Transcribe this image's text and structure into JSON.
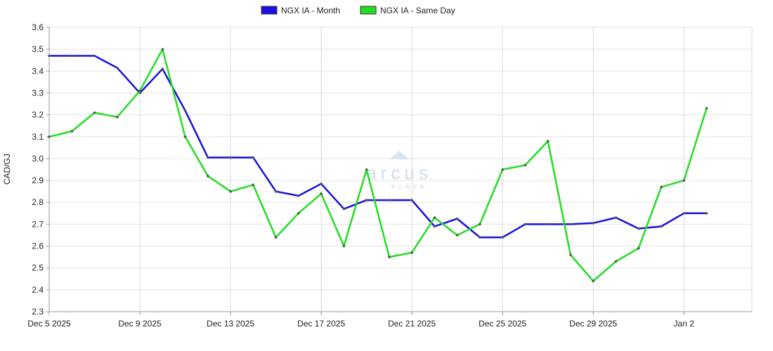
{
  "chart_data": {
    "type": "line",
    "ylabel": "CAD/GJ",
    "ylim": [
      2.3,
      3.6
    ],
    "yticks": [
      "2.3",
      "2.4",
      "2.5",
      "2.6",
      "2.7",
      "2.8",
      "2.9",
      "3.0",
      "3.1",
      "3.2",
      "3.3",
      "3.4",
      "3.5",
      "3.6"
    ],
    "x_tick_labels": [
      "Dec 5 2025",
      "Dec 9 2025",
      "Dec 13 2025",
      "Dec 17 2025",
      "Dec 21 2025",
      "Dec 25 2025",
      "Dec 29 2025",
      "Jan 2"
    ],
    "x_dates": [
      "2025-12-05",
      "2025-12-06",
      "2025-12-07",
      "2025-12-08",
      "2025-12-09",
      "2025-12-10",
      "2025-12-11",
      "2025-12-12",
      "2025-12-13",
      "2025-12-14",
      "2025-12-15",
      "2025-12-16",
      "2025-12-17",
      "2025-12-18",
      "2025-12-19",
      "2025-12-20",
      "2025-12-21",
      "2025-12-22",
      "2025-12-23",
      "2025-12-24",
      "2025-12-25",
      "2025-12-26",
      "2025-12-27",
      "2025-12-28",
      "2025-12-29",
      "2025-12-30",
      "2025-12-31",
      "2026-01-01",
      "2026-01-02",
      "2026-01-03"
    ],
    "grid": true,
    "legend_position": "top",
    "series": [
      {
        "name": "NGX IA - Month",
        "color": "#1a0fe0",
        "values": [
          3.47,
          3.47,
          3.47,
          3.415,
          3.3,
          3.41,
          3.22,
          3.005,
          3.005,
          3.005,
          2.85,
          2.83,
          2.885,
          2.77,
          2.81,
          2.81,
          2.81,
          2.69,
          2.725,
          2.64,
          2.64,
          2.7,
          2.7,
          2.7,
          2.705,
          2.73,
          2.68,
          2.69,
          2.75,
          2.75
        ]
      },
      {
        "name": "NGX IA - Same Day",
        "color": "#22dd22",
        "values": [
          3.1,
          3.125,
          3.21,
          3.19,
          3.31,
          3.5,
          3.1,
          2.92,
          2.85,
          2.88,
          2.64,
          2.75,
          2.84,
          2.6,
          2.95,
          2.55,
          2.57,
          2.73,
          2.65,
          2.7,
          2.95,
          2.97,
          3.08,
          2.56,
          2.44,
          2.53,
          2.59,
          2.87,
          2.9,
          3.23
        ]
      }
    ],
    "watermark": {
      "brand": "arcus",
      "sub": "POWER"
    }
  }
}
